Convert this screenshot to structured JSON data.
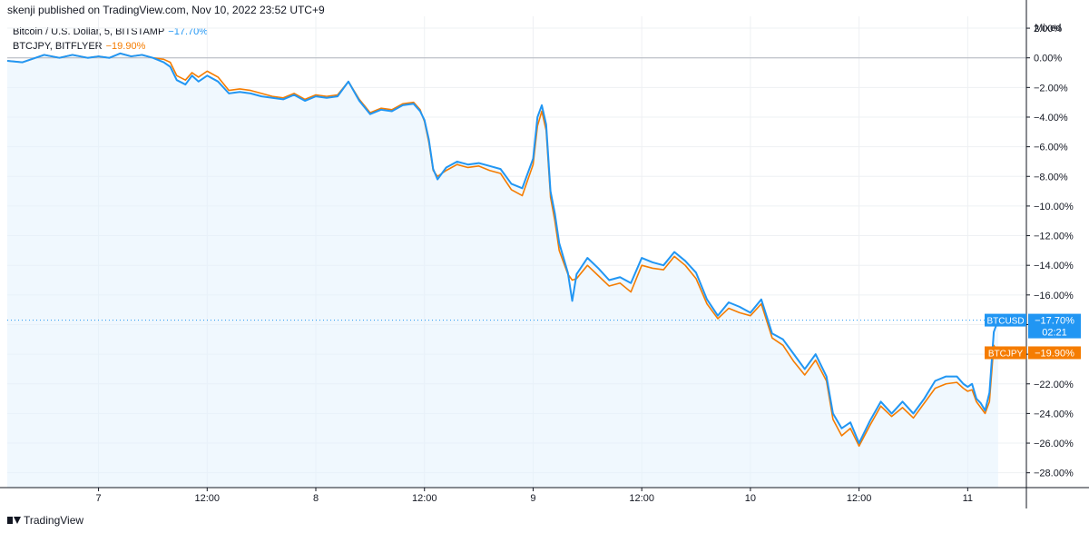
{
  "header": {
    "published_text": "skenji published on TradingView.com, Nov 10, 2022 23:52 UTC+9"
  },
  "legend": {
    "series1_label": "Bitcoin / U.S. Dollar, 5, BITSTAMP",
    "series1_change": "−17.70%",
    "series2_label": "BTCJPY, BITFLYER",
    "series2_change": "−19.90%"
  },
  "scale_mode_label": "Mixed",
  "footer": {
    "brand": "TradingView"
  },
  "chart_data": {
    "type": "line",
    "yaxis_unit": "%",
    "ylim": [
      -29,
      2.8
    ],
    "xlim": [
      -0.42,
      4.27
    ],
    "y_ticks": [
      2,
      0,
      -2,
      -4,
      -6,
      -8,
      -10,
      -12,
      -14,
      -16,
      -18,
      -20,
      -22,
      -24,
      -26,
      -28
    ],
    "y_tick_labels": [
      "2.00%",
      "0.00%",
      "−2.00%",
      "−4.00%",
      "−6.00%",
      "−8.00%",
      "−10.00%",
      "−12.00%",
      "−14.00%",
      "−16.00%",
      "−18.00%",
      "−20.00%",
      "−22.00%",
      "−24.00%",
      "−26.00%",
      "−28.00%"
    ],
    "x_ticks": [
      0,
      0.5,
      1,
      1.5,
      2,
      2.5,
      3,
      3.5,
      4
    ],
    "x_tick_labels": [
      "7",
      "12:00",
      "8",
      "12:00",
      "9",
      "12:00",
      "10",
      "12:00",
      "11"
    ],
    "zero_line": 0,
    "grid": true,
    "colors": {
      "btcusd": "#2196f3",
      "btcjpy": "#f57c00",
      "area_fill": "#e3f2fd",
      "grid": "#eef0f3"
    },
    "series": [
      {
        "name": "BTCUSD",
        "color": "#2196f3",
        "last_value_label": "−17.70%",
        "countdown": "02:21",
        "last_value": -17.7,
        "x": [
          -0.42,
          -0.35,
          -0.25,
          -0.18,
          -0.12,
          -0.05,
          0.0,
          0.05,
          0.1,
          0.15,
          0.2,
          0.25,
          0.3,
          0.33,
          0.36,
          0.4,
          0.43,
          0.46,
          0.5,
          0.55,
          0.6,
          0.65,
          0.7,
          0.75,
          0.8,
          0.85,
          0.9,
          0.95,
          1.0,
          1.05,
          1.1,
          1.15,
          1.2,
          1.25,
          1.3,
          1.35,
          1.4,
          1.45,
          1.48,
          1.5,
          1.52,
          1.54,
          1.56,
          1.6,
          1.65,
          1.7,
          1.75,
          1.8,
          1.85,
          1.9,
          1.95,
          2.0,
          2.02,
          2.04,
          2.06,
          2.08,
          2.1,
          2.12,
          2.14,
          2.16,
          2.18,
          2.2,
          2.25,
          2.3,
          2.35,
          2.4,
          2.45,
          2.5,
          2.55,
          2.6,
          2.65,
          2.7,
          2.75,
          2.8,
          2.85,
          2.9,
          2.95,
          3.0,
          3.05,
          3.1,
          3.15,
          3.2,
          3.25,
          3.3,
          3.35,
          3.38,
          3.42,
          3.46,
          3.5,
          3.55,
          3.6,
          3.65,
          3.7,
          3.75,
          3.8,
          3.85,
          3.9,
          3.95,
          3.98,
          4.0,
          4.02,
          4.04,
          4.06,
          4.08,
          4.1,
          4.12,
          4.14
        ],
        "values": [
          -0.2,
          -0.3,
          0.2,
          0.0,
          0.2,
          0.0,
          0.1,
          0.0,
          0.3,
          0.1,
          0.2,
          0.0,
          -0.3,
          -0.6,
          -1.5,
          -1.8,
          -1.2,
          -1.6,
          -1.2,
          -1.6,
          -2.4,
          -2.3,
          -2.4,
          -2.6,
          -2.7,
          -2.8,
          -2.5,
          -2.9,
          -2.6,
          -2.7,
          -2.6,
          -1.6,
          -2.9,
          -3.8,
          -3.5,
          -3.6,
          -3.2,
          -3.1,
          -3.6,
          -4.2,
          -5.5,
          -7.5,
          -8.2,
          -7.4,
          -7.0,
          -7.2,
          -7.1,
          -7.3,
          -7.5,
          -8.5,
          -8.8,
          -6.8,
          -4.0,
          -3.2,
          -4.5,
          -9.0,
          -10.5,
          -12.5,
          -13.5,
          -14.5,
          -16.4,
          -14.6,
          -13.5,
          -14.2,
          -15.0,
          -14.8,
          -15.2,
          -13.5,
          -13.8,
          -14.0,
          -13.1,
          -13.7,
          -14.5,
          -16.3,
          -17.4,
          -16.5,
          -16.8,
          -17.2,
          -16.3,
          -18.6,
          -19.0,
          -20.0,
          -21.0,
          -20.0,
          -21.5,
          -24.0,
          -25.0,
          -24.6,
          -26.0,
          -24.5,
          -23.2,
          -24.0,
          -23.2,
          -24.0,
          -23.0,
          -21.8,
          -21.5,
          -21.5,
          -22.0,
          -22.2,
          -22.0,
          -23.0,
          -23.3,
          -23.8,
          -22.6,
          -18.5,
          -17.7
        ]
      },
      {
        "name": "BTCJPY",
        "color": "#f57c00",
        "last_value_label": "−19.90%",
        "last_value": -19.9,
        "x": [
          -0.42,
          -0.35,
          -0.25,
          -0.18,
          -0.12,
          -0.05,
          0.0,
          0.05,
          0.1,
          0.15,
          0.2,
          0.25,
          0.3,
          0.33,
          0.36,
          0.4,
          0.43,
          0.46,
          0.5,
          0.55,
          0.6,
          0.65,
          0.7,
          0.75,
          0.8,
          0.85,
          0.9,
          0.95,
          1.0,
          1.05,
          1.1,
          1.15,
          1.2,
          1.25,
          1.3,
          1.35,
          1.4,
          1.45,
          1.48,
          1.5,
          1.52,
          1.54,
          1.56,
          1.6,
          1.65,
          1.7,
          1.75,
          1.8,
          1.85,
          1.9,
          1.95,
          2.0,
          2.02,
          2.04,
          2.06,
          2.08,
          2.1,
          2.12,
          2.14,
          2.16,
          2.18,
          2.2,
          2.25,
          2.3,
          2.35,
          2.4,
          2.45,
          2.5,
          2.55,
          2.6,
          2.65,
          2.7,
          2.75,
          2.8,
          2.85,
          2.9,
          2.95,
          3.0,
          3.05,
          3.1,
          3.15,
          3.2,
          3.25,
          3.3,
          3.35,
          3.38,
          3.42,
          3.46,
          3.5,
          3.55,
          3.6,
          3.65,
          3.7,
          3.75,
          3.8,
          3.85,
          3.9,
          3.95,
          3.98,
          4.0,
          4.02,
          4.04,
          4.06,
          4.08,
          4.1,
          4.12,
          4.14
        ],
        "values": [
          -0.2,
          -0.3,
          0.2,
          0.0,
          0.2,
          0.0,
          0.1,
          0.0,
          0.3,
          0.1,
          0.2,
          0.0,
          -0.1,
          -0.3,
          -1.2,
          -1.5,
          -1.0,
          -1.3,
          -0.9,
          -1.3,
          -2.2,
          -2.1,
          -2.2,
          -2.4,
          -2.6,
          -2.7,
          -2.4,
          -2.8,
          -2.5,
          -2.6,
          -2.5,
          -1.6,
          -2.8,
          -3.7,
          -3.4,
          -3.5,
          -3.1,
          -3.0,
          -3.5,
          -4.3,
          -5.7,
          -7.6,
          -8.0,
          -7.6,
          -7.2,
          -7.4,
          -7.3,
          -7.6,
          -7.8,
          -8.9,
          -9.3,
          -7.2,
          -4.6,
          -3.6,
          -4.9,
          -9.4,
          -11.0,
          -13.0,
          -13.8,
          -14.6,
          -15.0,
          -14.9,
          -14.0,
          -14.7,
          -15.4,
          -15.2,
          -15.8,
          -14.0,
          -14.2,
          -14.3,
          -13.4,
          -14.0,
          -14.9,
          -16.6,
          -17.6,
          -16.9,
          -17.2,
          -17.4,
          -16.6,
          -18.9,
          -19.4,
          -20.5,
          -21.4,
          -20.4,
          -21.8,
          -24.4,
          -25.5,
          -25.0,
          -26.2,
          -24.8,
          -23.5,
          -24.2,
          -23.6,
          -24.3,
          -23.3,
          -22.3,
          -22.0,
          -21.9,
          -22.3,
          -22.5,
          -22.4,
          -23.2,
          -23.6,
          -24.0,
          -23.2,
          -19.4,
          -19.9
        ]
      }
    ]
  }
}
